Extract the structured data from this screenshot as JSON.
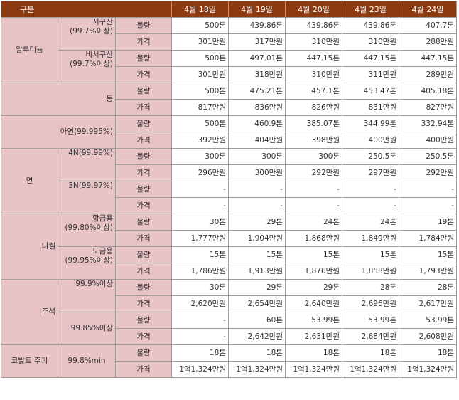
{
  "header": {
    "category": "구분",
    "dates": [
      "4월 18일",
      "4월 19일",
      "4월 20일",
      "4월 23일",
      "4월 24일"
    ]
  },
  "labels": {
    "qty": "물량",
    "price": "가격"
  },
  "aluminum": {
    "name": "알루미늄",
    "west_name": "서구산",
    "west_purity": "(99.7%이상)",
    "nonwest_name": "비서구산",
    "nonwest_purity": "(99.7%이상)",
    "west_qty": [
      "500톤",
      "439.86톤",
      "439.86톤",
      "439.86톤",
      "407.7톤"
    ],
    "west_price": [
      "301만원",
      "317만원",
      "310만원",
      "310만원",
      "288만원"
    ],
    "nonwest_qty": [
      "500톤",
      "497.01톤",
      "447.15톤",
      "447.15톤",
      "447.15톤"
    ],
    "nonwest_price": [
      "301만원",
      "318만원",
      "310만원",
      "311만원",
      "289만원"
    ]
  },
  "copper": {
    "name": "동",
    "qty": [
      "500톤",
      "475.21톤",
      "457.1톤",
      "453.47톤",
      "405.18톤"
    ],
    "price": [
      "817만원",
      "836만원",
      "826만원",
      "831만원",
      "827만원"
    ]
  },
  "zinc": {
    "name": "아연(99.995%)",
    "qty": [
      "500톤",
      "460.9톤",
      "385.07톤",
      "344.99톤",
      "332.94톤"
    ],
    "price": [
      "392만원",
      "404만원",
      "398만원",
      "400만원",
      "400만원"
    ]
  },
  "lead": {
    "name": "연",
    "g4n": "4N(99.99%)",
    "g3n": "3N(99.97%)",
    "g4n_qty": [
      "300톤",
      "300톤",
      "300톤",
      "250.5톤",
      "250.5톤"
    ],
    "g4n_price": [
      "296만원",
      "300만원",
      "292만원",
      "297만원",
      "292만원"
    ],
    "g3n_qty": [
      "-",
      "-",
      "-",
      "-",
      "-"
    ],
    "g3n_price": [
      "-",
      "-",
      "-",
      "-",
      "-"
    ]
  },
  "nickel": {
    "name": "니켈",
    "alloy_name": "합금용",
    "alloy_purity": "(99.80%이상)",
    "plating_name": "도금용",
    "plating_purity": "(99.95%이상)",
    "alloy_qty": [
      "30톤",
      "29톤",
      "24톤",
      "24톤",
      "19톤"
    ],
    "alloy_price": [
      "1,777만원",
      "1,904만원",
      "1,868만원",
      "1,849만원",
      "1,784만원"
    ],
    "plating_qty": [
      "15톤",
      "15톤",
      "15톤",
      "15톤",
      "15톤"
    ],
    "plating_price": [
      "1,786만원",
      "1,913만원",
      "1,876만원",
      "1,858만원",
      "1,793만원"
    ]
  },
  "tin": {
    "name": "주석",
    "g1": "99.9%이상",
    "g2": "99.85%이상",
    "g1_qty": [
      "30톤",
      "29톤",
      "29톤",
      "28톤",
      "28톤"
    ],
    "g1_price": [
      "2,620만원",
      "2,654만원",
      "2,640만원",
      "2,696만원",
      "2,617만원"
    ],
    "g2_qty": [
      "-",
      "60톤",
      "53.99톤",
      "53.99톤",
      "53.99톤"
    ],
    "g2_price": [
      "-",
      "2,642만원",
      "2,631만원",
      "2,684만원",
      "2,608만원"
    ]
  },
  "cobalt": {
    "name": "코발트 주괴",
    "grade": "99.8%min",
    "qty": [
      "18톤",
      "18톤",
      "18톤",
      "18톤",
      "18톤"
    ],
    "price": [
      "1억1,324만원",
      "1억1,324만원",
      "1억1,324만원",
      "1억1,324만원",
      "1억1,324만원"
    ]
  }
}
